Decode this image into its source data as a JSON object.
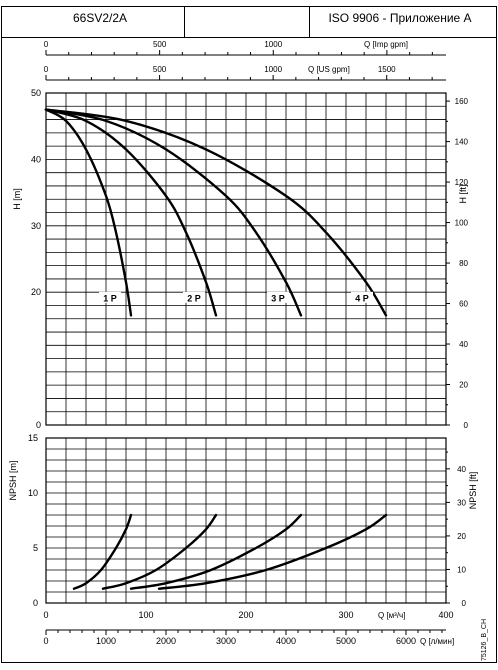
{
  "header": {
    "model": "66SV2/2A",
    "standard": "ISO 9906 - Приложение A"
  },
  "side_code": "75126_B_CH",
  "chart_data": [
    {
      "type": "line",
      "name": "head-chart",
      "x_axis": {
        "label": "Q [м³/ч]",
        "range": [
          0,
          400
        ],
        "unit": "m3/h"
      },
      "top_axes": [
        {
          "label": "Q [Imp gpm]",
          "ticks": [
            "0",
            "500",
            "1000"
          ],
          "values": [
            0,
            500,
            1000
          ],
          "range": [
            0,
            1760
          ]
        },
        {
          "label": "Q [US gpm]",
          "ticks": [
            "0",
            "500",
            "1000",
            "1500"
          ],
          "values": [
            0,
            500,
            1000,
            1500
          ],
          "range": [
            0,
            1761
          ]
        }
      ],
      "y_left": {
        "label": "H [m]",
        "range": [
          0,
          50
        ],
        "ticks": [
          "0",
          "20",
          "30",
          "40",
          "50"
        ],
        "values": [
          0,
          20,
          30,
          40,
          50
        ]
      },
      "y_right": {
        "label": "H [ft]",
        "range": [
          0,
          164
        ],
        "ticks": [
          "0",
          "20",
          "40",
          "60",
          "80",
          "100",
          "120",
          "140",
          "160"
        ],
        "values": [
          0,
          20,
          40,
          60,
          80,
          100,
          120,
          140,
          160
        ]
      },
      "grid": true,
      "series": [
        {
          "name": "1 P",
          "x": [
            0,
            20,
            40,
            60,
            70,
            80,
            85
          ],
          "y": [
            47.5,
            45.8,
            41.5,
            34.5,
            29,
            21.5,
            16.5
          ]
        },
        {
          "name": "2 P",
          "x": [
            0,
            40,
            80,
            120,
            140,
            160,
            170
          ],
          "y": [
            47.5,
            45.8,
            41.5,
            34.5,
            29,
            21.5,
            16.5
          ]
        },
        {
          "name": "3 P",
          "x": [
            0,
            60,
            120,
            180,
            210,
            240,
            255
          ],
          "y": [
            47.5,
            45.8,
            41.5,
            34.5,
            29,
            21.5,
            16.5
          ]
        },
        {
          "name": "4 P",
          "x": [
            0,
            80,
            160,
            240,
            280,
            320,
            340
          ],
          "y": [
            47.5,
            45.8,
            41.5,
            34.5,
            29,
            21.5,
            16.5
          ]
        }
      ]
    },
    {
      "type": "line",
      "name": "npsh-chart",
      "x_axis": {
        "label": "Q [м³/ч]",
        "range": [
          0,
          400
        ],
        "ticks": [
          "0",
          "100",
          "200",
          "300",
          "400"
        ],
        "values": [
          0,
          100,
          200,
          300,
          400
        ]
      },
      "x_axis_2": {
        "label": "Q [л/мин]",
        "range": [
          0,
          6667
        ],
        "ticks": [
          "0",
          "1000",
          "2000",
          "3000",
          "4000",
          "5000",
          "6000"
        ],
        "values": [
          0,
          1000,
          2000,
          3000,
          4000,
          5000,
          6000
        ]
      },
      "y_left": {
        "label": "NPSH [m]",
        "range": [
          0,
          15
        ],
        "ticks": [
          "0",
          "5",
          "10",
          "15"
        ],
        "values": [
          0,
          5,
          10,
          15
        ]
      },
      "y_right": {
        "label": "NPSH [ft]",
        "range": [
          0,
          49.2
        ],
        "ticks": [
          "0",
          "10",
          "20",
          "30",
          "40"
        ],
        "values": [
          0,
          10,
          20,
          30,
          40
        ]
      },
      "grid": true,
      "series": [
        {
          "name": "1 P",
          "x": [
            28,
            40,
            55,
            70,
            80,
            85
          ],
          "y": [
            1.3,
            1.8,
            3.0,
            5.0,
            6.7,
            8.0
          ]
        },
        {
          "name": "2 P",
          "x": [
            57,
            80,
            110,
            140,
            160,
            170
          ],
          "y": [
            1.3,
            1.8,
            3.0,
            5.0,
            6.7,
            8.0
          ]
        },
        {
          "name": "3 P",
          "x": [
            85,
            120,
            165,
            210,
            240,
            255
          ],
          "y": [
            1.3,
            1.8,
            3.0,
            5.0,
            6.7,
            8.0
          ]
        },
        {
          "name": "4 P",
          "x": [
            113,
            160,
            220,
            280,
            320,
            340
          ],
          "y": [
            1.3,
            1.8,
            3.0,
            5.0,
            6.7,
            8.0
          ]
        }
      ]
    }
  ]
}
